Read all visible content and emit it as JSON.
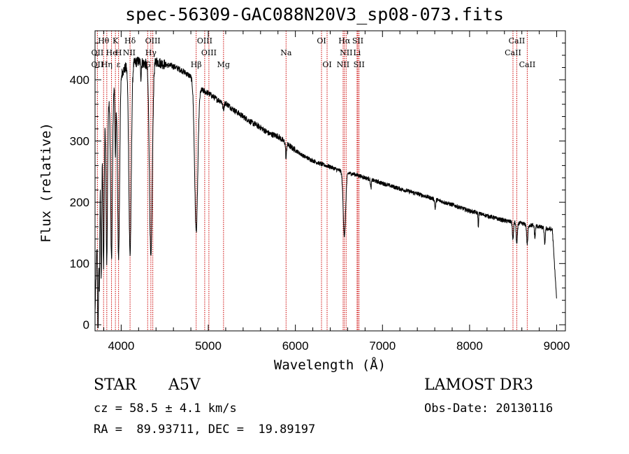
{
  "header": {
    "title": "spec-56309-GAC088N20V3_sp08-073.fits"
  },
  "info": {
    "class": "STAR",
    "subclass": "A5V",
    "survey": "LAMOST DR3",
    "cz": "cz = 58.5 ± 4.1 km/s",
    "obs_date": "Obs-Date: 20130116",
    "coords": "RA =  89.93711, DEC =  19.89197"
  },
  "colors": {
    "line": "#000000",
    "marker": "#cc0000"
  },
  "chart_data": {
    "type": "line",
    "title": "spec-56309-GAC088N20V3_sp08-073.fits",
    "xlabel": "Wavelength (Å)",
    "ylabel": "Flux (relative)",
    "xlim": [
      3700,
      9100
    ],
    "ylim": [
      -10,
      480
    ],
    "xticks": [
      4000,
      5000,
      6000,
      7000,
      8000,
      9000
    ],
    "yticks": [
      0,
      100,
      200,
      300,
      400
    ],
    "xtick_labels": [
      "4000",
      "5000",
      "6000",
      "7000",
      "8000",
      "9000"
    ],
    "ytick_labels": [
      "0",
      "100",
      "200",
      "300",
      "400"
    ],
    "continuum": [
      [
        3700,
        20
      ],
      [
        3720,
        120
      ],
      [
        3760,
        280
      ],
      [
        3800,
        330
      ],
      [
        3850,
        360
      ],
      [
        3900,
        380
      ],
      [
        3950,
        395
      ],
      [
        4000,
        410
      ],
      [
        4050,
        420
      ],
      [
        4100,
        425
      ],
      [
        4150,
        428
      ],
      [
        4200,
        430
      ],
      [
        4300,
        425
      ],
      [
        4400,
        430
      ],
      [
        4500,
        425
      ],
      [
        4600,
        422
      ],
      [
        4700,
        415
      ],
      [
        4800,
        405
      ],
      [
        4900,
        385
      ],
      [
        5000,
        378
      ],
      [
        5100,
        368
      ],
      [
        5200,
        362
      ],
      [
        5300,
        350
      ],
      [
        5400,
        340
      ],
      [
        5500,
        330
      ],
      [
        5600,
        322
      ],
      [
        5700,
        312
      ],
      [
        5800,
        308
      ],
      [
        5900,
        295
      ],
      [
        6000,
        285
      ],
      [
        6100,
        275
      ],
      [
        6200,
        268
      ],
      [
        6300,
        262
      ],
      [
        6400,
        258
      ],
      [
        6500,
        252
      ],
      [
        6600,
        248
      ],
      [
        6700,
        245
      ],
      [
        6800,
        240
      ],
      [
        7000,
        231
      ],
      [
        7200,
        222
      ],
      [
        7400,
        214
      ],
      [
        7600,
        205
      ],
      [
        7800,
        196
      ],
      [
        8000,
        186
      ],
      [
        8200,
        178
      ],
      [
        8400,
        170
      ],
      [
        8600,
        165
      ],
      [
        8800,
        160
      ],
      [
        8950,
        155
      ],
      [
        9000,
        40
      ]
    ],
    "absorption_lines": [
      {
        "center": 3735,
        "depth": 200,
        "width": 5
      },
      {
        "center": 3750,
        "depth": 180,
        "width": 5
      },
      {
        "center": 3771,
        "depth": 220,
        "width": 6
      },
      {
        "center": 3798,
        "depth": 230,
        "width": 7
      },
      {
        "center": 3835,
        "depth": 250,
        "width": 8
      },
      {
        "center": 3889,
        "depth": 270,
        "width": 10
      },
      {
        "center": 3934,
        "depth": 120,
        "width": 5
      },
      {
        "center": 3970,
        "depth": 290,
        "width": 12
      },
      {
        "center": 4102,
        "depth": 310,
        "width": 14
      },
      {
        "center": 4227,
        "depth": 25,
        "width": 4
      },
      {
        "center": 4341,
        "depth": 320,
        "width": 16
      },
      {
        "center": 4861,
        "depth": 240,
        "width": 18
      },
      {
        "center": 5173,
        "depth": 12,
        "width": 8
      },
      {
        "center": 5893,
        "depth": 25,
        "width": 5
      },
      {
        "center": 6563,
        "depth": 105,
        "width": 14
      },
      {
        "center": 6867,
        "depth": 15,
        "width": 5
      },
      {
        "center": 7605,
        "depth": 15,
        "width": 6
      },
      {
        "center": 8100,
        "depth": 25,
        "width": 3
      },
      {
        "center": 8498,
        "depth": 30,
        "width": 6
      },
      {
        "center": 8542,
        "depth": 35,
        "width": 7
      },
      {
        "center": 8662,
        "depth": 32,
        "width": 7
      },
      {
        "center": 8750,
        "depth": 20,
        "width": 5
      },
      {
        "center": 8863,
        "depth": 25,
        "width": 6
      }
    ],
    "line_markers": [
      {
        "label": "Hθ",
        "wave": 3798,
        "row": 1
      },
      {
        "label": "K",
        "wave": 3934,
        "row": 1
      },
      {
        "label": "Hδ",
        "wave": 4102,
        "row": 1
      },
      {
        "label": "OIII",
        "wave": 4363,
        "row": 1
      },
      {
        "label": "OIII",
        "wave": 4959,
        "row": 1
      },
      {
        "label": "OI",
        "wave": 6300,
        "row": 1
      },
      {
        "label": "Hα",
        "wave": 6563,
        "row": 1
      },
      {
        "label": "SII",
        "wave": 6717,
        "row": 1
      },
      {
        "label": "CaII",
        "wave": 8542,
        "row": 1
      },
      {
        "label": "OII",
        "wave": 3727,
        "row": 2
      },
      {
        "label": "He",
        "wave": 3889,
        "row": 2
      },
      {
        "label": "H",
        "wave": 3970,
        "row": 2
      },
      {
        "label": "NII",
        "wave": 4092,
        "row": 2
      },
      {
        "label": "Hγ",
        "wave": 4341,
        "row": 2
      },
      {
        "label": "OIII",
        "wave": 5007,
        "row": 2
      },
      {
        "label": "Na",
        "wave": 5893,
        "row": 2
      },
      {
        "label": "NII",
        "wave": 6583,
        "row": 2
      },
      {
        "label": "Li",
        "wave": 6708,
        "row": 2
      },
      {
        "label": "CaII",
        "wave": 8498,
        "row": 2
      },
      {
        "label": "OII",
        "wave": 3727,
        "row": 3
      },
      {
        "label": "Hη",
        "wave": 3835,
        "row": 3
      },
      {
        "label": "ε",
        "wave": 3970,
        "row": 3
      },
      {
        "label": "G",
        "wave": 4304,
        "row": 3
      },
      {
        "label": "Hβ",
        "wave": 4861,
        "row": 3
      },
      {
        "label": "Mg",
        "wave": 5175,
        "row": 3
      },
      {
        "label": "OI",
        "wave": 6364,
        "row": 3
      },
      {
        "label": "NII",
        "wave": 6548,
        "row": 3
      },
      {
        "label": "SII",
        "wave": 6731,
        "row": 3
      },
      {
        "label": "CaII",
        "wave": 8662,
        "row": 3
      }
    ],
    "marker_waves": [
      3727,
      3798,
      3835,
      3889,
      3934,
      3970,
      4102,
      4304,
      4341,
      4363,
      4861,
      4959,
      5007,
      5175,
      5893,
      6300,
      6364,
      6548,
      6563,
      6583,
      6708,
      6717,
      6731,
      8498,
      8542,
      8662
    ]
  }
}
